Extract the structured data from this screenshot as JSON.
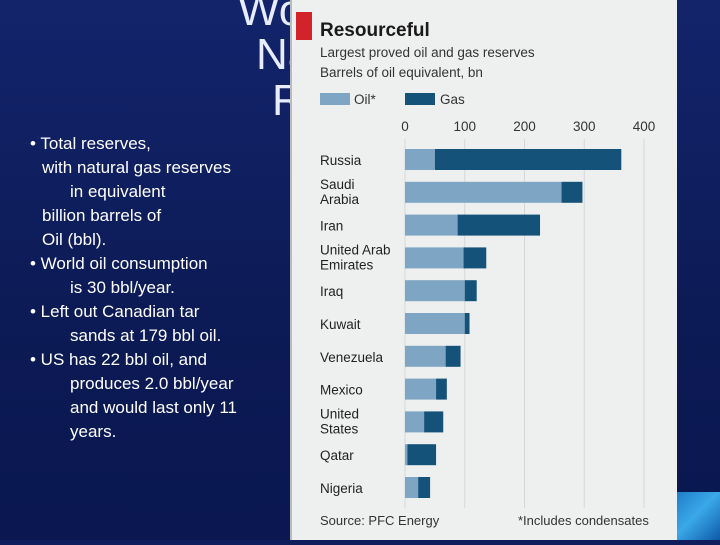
{
  "slide": {
    "title_fragments": [
      "Wo",
      "Na",
      "R"
    ],
    "bullets": [
      {
        "lines": [
          "•  Total reserves,",
          "with natural gas reserves",
          "in equivalent",
          "billion barrels of",
          "Oil (bbl)."
        ]
      },
      {
        "lines": [
          "•  World oil consumption",
          "is 30 bbl/year."
        ]
      },
      {
        "lines": [
          "•  Left out Canadian tar",
          "sands at 179 bbl oil."
        ]
      },
      {
        "lines": [
          "•  US has 22 bbl oil, and",
          "produces 2.0 bbl/year",
          "and would last only 11",
          "years."
        ]
      }
    ]
  },
  "chart_data": {
    "type": "bar",
    "orientation": "horizontal",
    "stacked": true,
    "title": "Resourceful",
    "subtitle": "Largest proved oil and gas reserves",
    "unit_label": "Barrels of oil equivalent, bn",
    "categories": [
      "Russia",
      "Saudi Arabia",
      "Iran",
      "United Arab Emirates",
      "Iraq",
      "Kuwait",
      "Venezuela",
      "Mexico",
      "United States",
      "Qatar",
      "Nigeria"
    ],
    "category_lines": [
      [
        "Russia"
      ],
      [
        "Saudi",
        "Arabia"
      ],
      [
        "Iran"
      ],
      [
        "United Arab",
        "Emirates"
      ],
      [
        "Iraq"
      ],
      [
        "Kuwait"
      ],
      [
        "Venezuela"
      ],
      [
        "Mexico"
      ],
      [
        "United",
        "States"
      ],
      [
        "Qatar"
      ],
      [
        "Nigeria"
      ]
    ],
    "series": [
      {
        "name": "Oil*",
        "color": "#7ea6c4",
        "values": [
          50,
          262,
          88,
          98,
          100,
          100,
          68,
          52,
          32,
          4,
          22
        ]
      },
      {
        "name": "Gas",
        "color": "#15527a",
        "values": [
          312,
          35,
          138,
          38,
          20,
          8,
          25,
          18,
          32,
          48,
          20
        ]
      }
    ],
    "xlim": [
      0,
      400
    ],
    "ticks": [
      0,
      100,
      200,
      300,
      400
    ],
    "tick_labels": [
      "0",
      "100",
      "200",
      "300",
      "400"
    ],
    "source": "Source: PFC Energy",
    "footnote": "*Includes condensates"
  }
}
